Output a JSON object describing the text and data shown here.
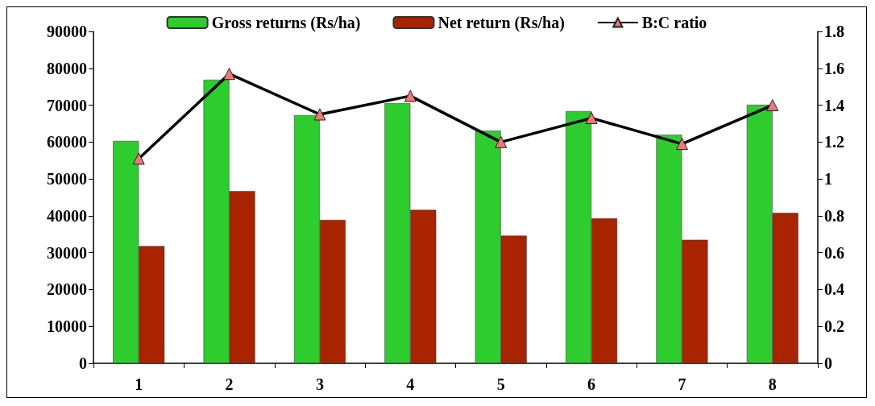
{
  "chart_data": {
    "type": "bar",
    "categories": [
      "1",
      "2",
      "3",
      "4",
      "5",
      "6",
      "7",
      "8"
    ],
    "series": [
      {
        "name": "Gross returns (Rs/ha)",
        "color": "#2ecc2e",
        "values": [
          60300,
          76900,
          67300,
          70500,
          63100,
          68400,
          62000,
          70100
        ]
      },
      {
        "name": "Net return (Rs/ha)",
        "color": "#a82400",
        "values": [
          31800,
          46700,
          38900,
          41600,
          34600,
          39300,
          33500,
          40800
        ]
      },
      {
        "name": "B:C ratio",
        "type": "line",
        "axis": "y2",
        "color": "#000000",
        "marker": "triangle",
        "values": [
          1.11,
          1.57,
          1.35,
          1.45,
          1.2,
          1.33,
          1.19,
          1.4
        ]
      }
    ],
    "ylim": [
      0,
      90000
    ],
    "yticks": [
      0,
      10000,
      20000,
      30000,
      40000,
      50000,
      60000,
      70000,
      80000,
      90000
    ],
    "y2lim": [
      0,
      1.8
    ],
    "y2ticks": [
      0,
      0.2,
      0.4,
      0.6,
      0.8,
      1,
      1.2,
      1.4,
      1.6,
      1.8
    ],
    "grid": false,
    "legend": "top"
  }
}
